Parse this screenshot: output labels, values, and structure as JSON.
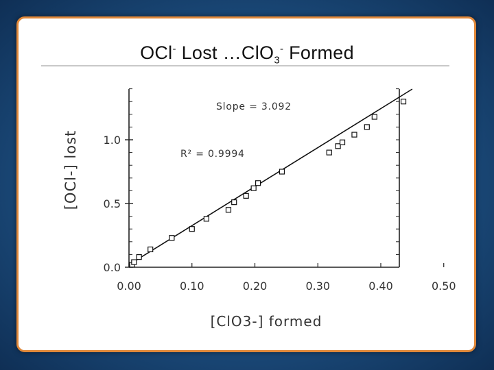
{
  "slide": {
    "title_main": "OCl",
    "title_sup1": "-",
    "title_mid": " Lost …ClO",
    "title_sub": "3",
    "title_sup2": "-",
    "title_end": " Formed"
  },
  "chart_data": {
    "type": "scatter",
    "xlabel": "[ClO3-] formed",
    "ylabel": "[OCl-] lost",
    "xlim": [
      0.0,
      0.5
    ],
    "ylim": [
      0.0,
      1.4
    ],
    "x_ticks": [
      "0.00",
      "0.10",
      "0.20",
      "0.30",
      "0.40",
      "0.50"
    ],
    "y_ticks": [
      "0.0",
      "0.5",
      "1.0"
    ],
    "annotations": [
      "Slope = 3.092",
      "R² = 0.9994"
    ],
    "fit_line": {
      "slope": 3.092,
      "intercept": 0.02,
      "x_range": [
        0.0,
        0.45
      ]
    },
    "points": [
      {
        "x": 0.005,
        "y": 0.02
      },
      {
        "x": 0.008,
        "y": 0.04
      },
      {
        "x": 0.016,
        "y": 0.08
      },
      {
        "x": 0.034,
        "y": 0.14
      },
      {
        "x": 0.068,
        "y": 0.23
      },
      {
        "x": 0.1,
        "y": 0.3
      },
      {
        "x": 0.123,
        "y": 0.38
      },
      {
        "x": 0.158,
        "y": 0.45
      },
      {
        "x": 0.167,
        "y": 0.51
      },
      {
        "x": 0.186,
        "y": 0.56
      },
      {
        "x": 0.198,
        "y": 0.62
      },
      {
        "x": 0.205,
        "y": 0.66
      },
      {
        "x": 0.243,
        "y": 0.75
      },
      {
        "x": 0.318,
        "y": 0.9
      },
      {
        "x": 0.332,
        "y": 0.95
      },
      {
        "x": 0.339,
        "y": 0.98
      },
      {
        "x": 0.358,
        "y": 1.04
      },
      {
        "x": 0.378,
        "y": 1.1
      },
      {
        "x": 0.39,
        "y": 1.18
      },
      {
        "x": 0.436,
        "y": 1.3
      }
    ]
  }
}
